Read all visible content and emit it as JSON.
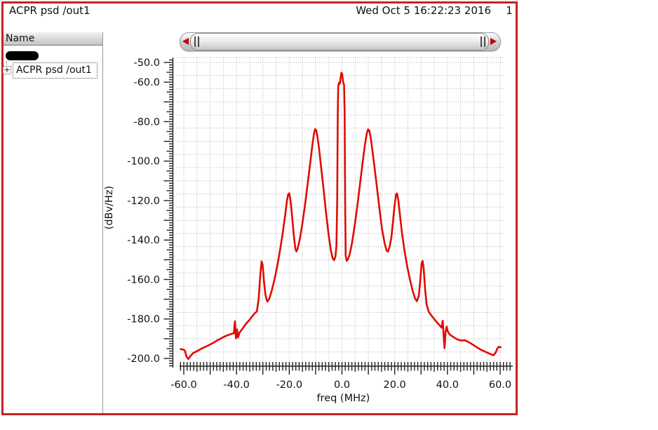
{
  "window": {
    "title": "ACPR psd /out1",
    "timestamp": "Wed Oct 5 16:22:23 2016",
    "page_number": "1",
    "border_color": "#c32422"
  },
  "sidebar": {
    "header": "Name",
    "tree": {
      "expander_symbol": "+",
      "label": "ACPR psd /out1"
    }
  },
  "scrollbar": {
    "left_arrow_icon": "left-triangle",
    "right_arrow_icon": "right-triangle",
    "handle_icon": "double-bar-grip"
  },
  "chart_data": {
    "type": "line",
    "title": "ACPR psd /out1",
    "xlabel": "freq (MHz)",
    "ylabel": "(dBv/Hz)",
    "xlim": [
      -62,
      65
    ],
    "ylim": [
      -205,
      -47
    ],
    "grid": "dotted",
    "x_ticks": [
      -60,
      -40,
      -20,
      0,
      20,
      40,
      60
    ],
    "x_tick_labels": [
      "-60.0",
      "-40.0",
      "-20.0",
      "0.0",
      "20.0",
      "40.0",
      "60.0"
    ],
    "y_ticks": [
      -50,
      -60,
      -80,
      -100,
      -120,
      -140,
      -160,
      -180,
      -200
    ],
    "y_tick_labels": [
      "-50.0",
      "-60.0",
      "-80.0",
      "-100.0",
      "-120.0",
      "-140.0",
      "-160.0",
      "-180.0",
      "-200.0"
    ],
    "series": [
      {
        "name": "ACPR psd /out1",
        "color": "#e00b00",
        "points": [
          [
            -61.2,
            -195.3
          ],
          [
            -60.2,
            -195.5
          ],
          [
            -59.6,
            -196.0
          ],
          [
            -59.0,
            -199.0
          ],
          [
            -58.3,
            -200.3
          ],
          [
            -57.6,
            -199.0
          ],
          [
            -56.5,
            -197.3
          ],
          [
            -55.0,
            -196.3
          ],
          [
            -53.0,
            -194.8
          ],
          [
            -51.0,
            -193.6
          ],
          [
            -49.0,
            -192.2
          ],
          [
            -47.0,
            -190.6
          ],
          [
            -45.0,
            -189.2
          ],
          [
            -43.5,
            -188.3
          ],
          [
            -42.0,
            -187.6
          ],
          [
            -41.0,
            -187.2
          ],
          [
            -40.6,
            -181.2
          ],
          [
            -40.2,
            -189.8
          ],
          [
            -39.8,
            -185.3
          ],
          [
            -39.4,
            -189.3
          ],
          [
            -38.9,
            -187.0
          ],
          [
            -38.0,
            -185.4
          ],
          [
            -36.5,
            -182.6
          ],
          [
            -35.0,
            -180.3
          ],
          [
            -34.0,
            -178.6
          ],
          [
            -33.0,
            -176.9
          ],
          [
            -32.3,
            -176.3
          ],
          [
            -31.6,
            -170.0
          ],
          [
            -31.0,
            -158.0
          ],
          [
            -30.5,
            -150.8
          ],
          [
            -30.1,
            -152.5
          ],
          [
            -29.6,
            -161.0
          ],
          [
            -29.0,
            -168.0
          ],
          [
            -28.3,
            -171.2
          ],
          [
            -27.6,
            -169.8
          ],
          [
            -26.6,
            -165.5
          ],
          [
            -25.6,
            -160.0
          ],
          [
            -24.6,
            -153.5
          ],
          [
            -23.6,
            -146.0
          ],
          [
            -22.6,
            -137.5
          ],
          [
            -21.6,
            -128.0
          ],
          [
            -20.9,
            -120.5
          ],
          [
            -20.4,
            -116.8
          ],
          [
            -20.0,
            -116.3
          ],
          [
            -19.5,
            -120.0
          ],
          [
            -18.9,
            -128.5
          ],
          [
            -18.2,
            -138.5
          ],
          [
            -17.7,
            -144.3
          ],
          [
            -17.3,
            -145.8
          ],
          [
            -16.8,
            -144.3
          ],
          [
            -16.0,
            -139.5
          ],
          [
            -15.0,
            -131.5
          ],
          [
            -14.0,
            -122.0
          ],
          [
            -13.0,
            -111.5
          ],
          [
            -12.0,
            -100.5
          ],
          [
            -11.2,
            -91.5
          ],
          [
            -10.6,
            -85.8
          ],
          [
            -10.2,
            -83.8
          ],
          [
            -9.8,
            -84.3
          ],
          [
            -9.3,
            -87.5
          ],
          [
            -8.7,
            -93.5
          ],
          [
            -8.0,
            -102.0
          ],
          [
            -7.0,
            -114.0
          ],
          [
            -6.0,
            -126.5
          ],
          [
            -5.0,
            -138.0
          ],
          [
            -4.2,
            -145.3
          ],
          [
            -3.5,
            -149.3
          ],
          [
            -3.0,
            -150.2
          ],
          [
            -2.5,
            -148.5
          ],
          [
            -2.1,
            -143.0
          ],
          [
            -1.8,
            -120.0
          ],
          [
            -1.6,
            -76.0
          ],
          [
            -1.4,
            -62.0
          ],
          [
            -1.1,
            -60.2
          ],
          [
            -0.8,
            -60.8
          ],
          [
            -0.5,
            -57.5
          ],
          [
            -0.2,
            -55.2
          ],
          [
            0.1,
            -56.0
          ],
          [
            0.4,
            -59.8
          ],
          [
            0.8,
            -61.5
          ],
          [
            1.0,
            -75.0
          ],
          [
            1.2,
            -120.0
          ],
          [
            1.4,
            -148.0
          ],
          [
            1.8,
            -150.6
          ],
          [
            2.4,
            -149.3
          ],
          [
            3.0,
            -146.8
          ],
          [
            3.8,
            -141.5
          ],
          [
            4.8,
            -133.0
          ],
          [
            5.8,
            -123.0
          ],
          [
            6.8,
            -112.0
          ],
          [
            7.8,
            -101.0
          ],
          [
            8.7,
            -91.8
          ],
          [
            9.4,
            -86.0
          ],
          [
            9.9,
            -83.9
          ],
          [
            10.3,
            -84.3
          ],
          [
            10.8,
            -87.3
          ],
          [
            11.4,
            -93.0
          ],
          [
            12.2,
            -101.5
          ],
          [
            13.2,
            -112.5
          ],
          [
            14.2,
            -124.0
          ],
          [
            15.2,
            -134.5
          ],
          [
            16.2,
            -141.8
          ],
          [
            16.9,
            -145.2
          ],
          [
            17.4,
            -145.9
          ],
          [
            18.0,
            -143.8
          ],
          [
            18.7,
            -139.0
          ],
          [
            19.3,
            -131.5
          ],
          [
            19.9,
            -123.0
          ],
          [
            20.5,
            -117.0
          ],
          [
            20.9,
            -116.4
          ],
          [
            21.4,
            -120.0
          ],
          [
            22.0,
            -127.5
          ],
          [
            22.8,
            -137.0
          ],
          [
            23.8,
            -146.0
          ],
          [
            24.8,
            -153.8
          ],
          [
            25.8,
            -160.2
          ],
          [
            26.8,
            -165.6
          ],
          [
            27.7,
            -169.5
          ],
          [
            28.4,
            -171.0
          ],
          [
            29.1,
            -168.5
          ],
          [
            29.7,
            -160.5
          ],
          [
            30.2,
            -151.8
          ],
          [
            30.6,
            -150.6
          ],
          [
            31.0,
            -154.5
          ],
          [
            31.5,
            -164.5
          ],
          [
            32.1,
            -172.5
          ],
          [
            32.9,
            -176.3
          ],
          [
            34.0,
            -178.4
          ],
          [
            35.5,
            -180.9
          ],
          [
            37.0,
            -183.2
          ],
          [
            37.8,
            -184.4
          ],
          [
            38.2,
            -180.9
          ],
          [
            38.6,
            -189.5
          ],
          [
            38.9,
            -194.8
          ],
          [
            39.3,
            -186.5
          ],
          [
            39.7,
            -183.9
          ],
          [
            40.1,
            -186.2
          ],
          [
            40.8,
            -187.8
          ],
          [
            42.0,
            -188.9
          ],
          [
            43.5,
            -190.2
          ],
          [
            45.0,
            -190.9
          ],
          [
            46.5,
            -190.8
          ],
          [
            47.5,
            -191.3
          ],
          [
            49.0,
            -192.5
          ],
          [
            51.0,
            -194.2
          ],
          [
            53.0,
            -195.8
          ],
          [
            55.0,
            -197.0
          ],
          [
            56.5,
            -197.9
          ],
          [
            57.5,
            -198.4
          ],
          [
            58.3,
            -197.0
          ],
          [
            58.9,
            -195.0
          ],
          [
            59.5,
            -194.1
          ],
          [
            60.2,
            -194.3
          ]
        ]
      }
    ]
  }
}
